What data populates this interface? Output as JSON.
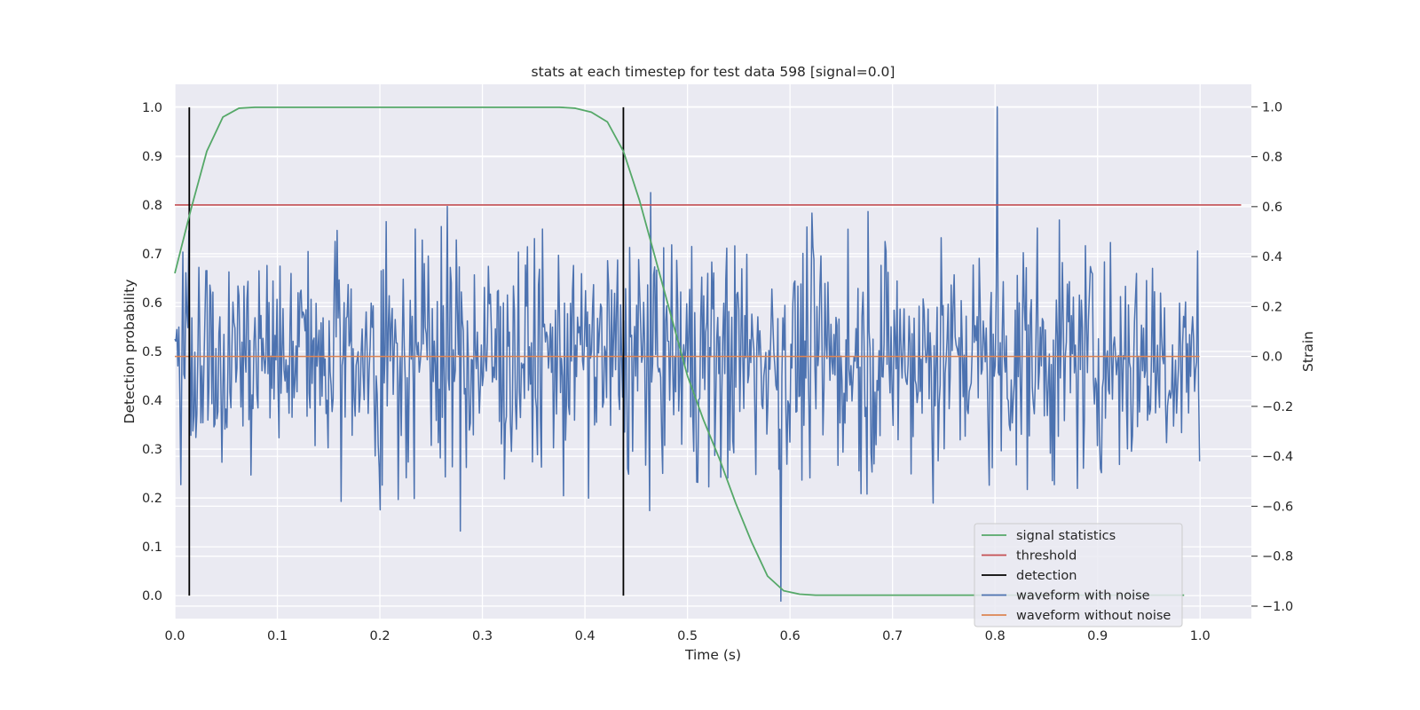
{
  "chart_data": {
    "type": "line",
    "title": "stats at each timestep for test data 598 [signal=0.0]",
    "xlabel": "Time (s)",
    "ylabel_left": "Detection probability",
    "ylabel_right": "Strain",
    "xlim": [
      0.0,
      1.05
    ],
    "ylim_left": [
      -0.047,
      1.047
    ],
    "ylim_right": [
      -1.05,
      1.09
    ],
    "x_ticks": [
      "0.0",
      "0.1",
      "0.2",
      "0.3",
      "0.4",
      "0.5",
      "0.6",
      "0.7",
      "0.8",
      "0.9",
      "1.0"
    ],
    "y_left_ticks": [
      "0.0",
      "0.1",
      "0.2",
      "0.3",
      "0.4",
      "0.5",
      "0.6",
      "0.7",
      "0.8",
      "0.9",
      "1.0"
    ],
    "y_right_ticks": [
      "−1.0",
      "−0.8",
      "−0.6",
      "−0.4",
      "−0.2",
      "0.0",
      "0.2",
      "0.4",
      "0.6",
      "0.8",
      "1.0"
    ],
    "grid": true,
    "legend_position": "bottom-right",
    "series": [
      {
        "name": "signal statistics",
        "axis": "left",
        "color": "#55a868",
        "x": [
          0.0,
          0.0156,
          0.0312,
          0.0469,
          0.0625,
          0.0781,
          0.0938,
          0.1094,
          0.125,
          0.1406,
          0.1562,
          0.1719,
          0.1875,
          0.2031,
          0.2188,
          0.2344,
          0.25,
          0.2656,
          0.2812,
          0.2969,
          0.3125,
          0.3281,
          0.3438,
          0.3594,
          0.375,
          0.3906,
          0.4062,
          0.4219,
          0.4375,
          0.4531,
          0.4688,
          0.4844,
          0.5,
          0.5156,
          0.5312,
          0.5469,
          0.5625,
          0.5781,
          0.5938,
          0.6094,
          0.625,
          0.6406,
          0.6562,
          0.6719,
          0.6875,
          0.7031,
          0.7188,
          0.7344,
          0.75,
          0.7656,
          0.7812,
          0.7969,
          0.8125,
          0.8281,
          0.8438,
          0.8594,
          0.875,
          0.8906,
          0.9062,
          0.9219,
          0.9375,
          0.9531,
          0.9688,
          0.9844
        ],
        "values": [
          0.66,
          0.79,
          0.91,
          0.98,
          0.998,
          1.0,
          1.0,
          1.0,
          1.0,
          1.0,
          1.0,
          1.0,
          1.0,
          1.0,
          1.0,
          1.0,
          1.0,
          1.0,
          1.0,
          1.0,
          1.0,
          1.0,
          1.0,
          1.0,
          1.0,
          0.998,
          0.99,
          0.97,
          0.91,
          0.81,
          0.69,
          0.57,
          0.45,
          0.36,
          0.28,
          0.19,
          0.11,
          0.04,
          0.01,
          0.003,
          0.001,
          0.001,
          0.001,
          0.001,
          0.001,
          0.001,
          0.001,
          0.001,
          0.001,
          0.001,
          0.001,
          0.001,
          0.001,
          0.001,
          0.001,
          0.001,
          0.001,
          0.001,
          0.001,
          0.001,
          0.001,
          0.001,
          0.001,
          0.001
        ]
      },
      {
        "name": "threshold",
        "axis": "left",
        "color": "#c44e52",
        "x": [
          0.0,
          1.04
        ],
        "values": [
          0.8,
          0.8
        ]
      },
      {
        "name": "detection",
        "axis": "left",
        "color": "#000000",
        "segments": [
          {
            "x": 0.0141,
            "y": [
              0.0,
              1.0
            ]
          },
          {
            "x": 0.4375,
            "y": [
              0.0,
              1.0
            ]
          }
        ]
      },
      {
        "name": "waveform with noise",
        "axis": "right",
        "color": "#4c72b0",
        "x_range": [
          0.0,
          0.9995
        ],
        "n_points": 1024,
        "y_range_observed": [
          -0.98,
          1.0
        ],
        "values": "1024 points of noise between -0.98 and 1.0 Strain, centred on 0.0; peak 1.0 at 0.802 s, minimum -0.98 at 0.591 s"
      },
      {
        "name": "waveform without noise",
        "axis": "right",
        "color": "#dd8452",
        "x": [
          0.0,
          0.9995
        ],
        "values": [
          0.0,
          0.0
        ]
      }
    ]
  }
}
